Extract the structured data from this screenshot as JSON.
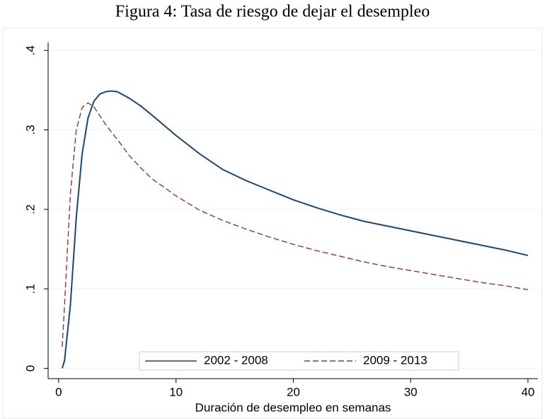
{
  "chart_data": {
    "type": "line",
    "title": "Figura 4: Tasa de riesgo de dejar el desempleo",
    "x_label": "Duración de desempleo en semanas",
    "x": [
      0.3,
      0.5,
      1,
      1.5,
      2,
      2.5,
      3,
      3.5,
      4,
      4.5,
      5,
      6,
      7,
      8,
      10,
      12,
      14,
      16,
      18,
      20,
      22,
      24,
      26,
      28,
      30,
      32,
      34,
      36,
      38,
      40
    ],
    "series": [
      {
        "name": "2002 - 2008",
        "color": "#1a476f",
        "dash": false,
        "values": [
          0.0,
          0.01,
          0.08,
          0.19,
          0.27,
          0.315,
          0.336,
          0.345,
          0.348,
          0.349,
          0.348,
          0.34,
          0.33,
          0.318,
          0.293,
          0.27,
          0.25,
          0.236,
          0.224,
          0.212,
          0.202,
          0.193,
          0.185,
          0.179,
          0.173,
          0.167,
          0.161,
          0.155,
          0.149,
          0.142
        ]
      },
      {
        "name": "2009 - 2013",
        "color": "#90353b",
        "dash": true,
        "values": [
          0.027,
          0.08,
          0.22,
          0.3,
          0.328,
          0.334,
          0.329,
          0.318,
          0.307,
          0.297,
          0.288,
          0.268,
          0.252,
          0.238,
          0.217,
          0.199,
          0.186,
          0.175,
          0.165,
          0.156,
          0.148,
          0.141,
          0.134,
          0.128,
          0.123,
          0.118,
          0.113,
          0.108,
          0.104,
          0.099
        ]
      }
    ],
    "xlim": [
      -0.9,
      40.85
    ],
    "xticks": [
      0,
      10,
      20,
      30,
      40
    ],
    "ylim": [
      -0.013,
      0.41
    ],
    "yticks": [
      0,
      {
        "value": 0.1,
        "label": ".1"
      },
      {
        "value": 0.2,
        "label": ".2"
      },
      {
        "value": 0.3,
        "label": ".3"
      },
      {
        "value": 0.4,
        "label": ".4"
      }
    ],
    "grid": true,
    "legend": "bottom"
  }
}
